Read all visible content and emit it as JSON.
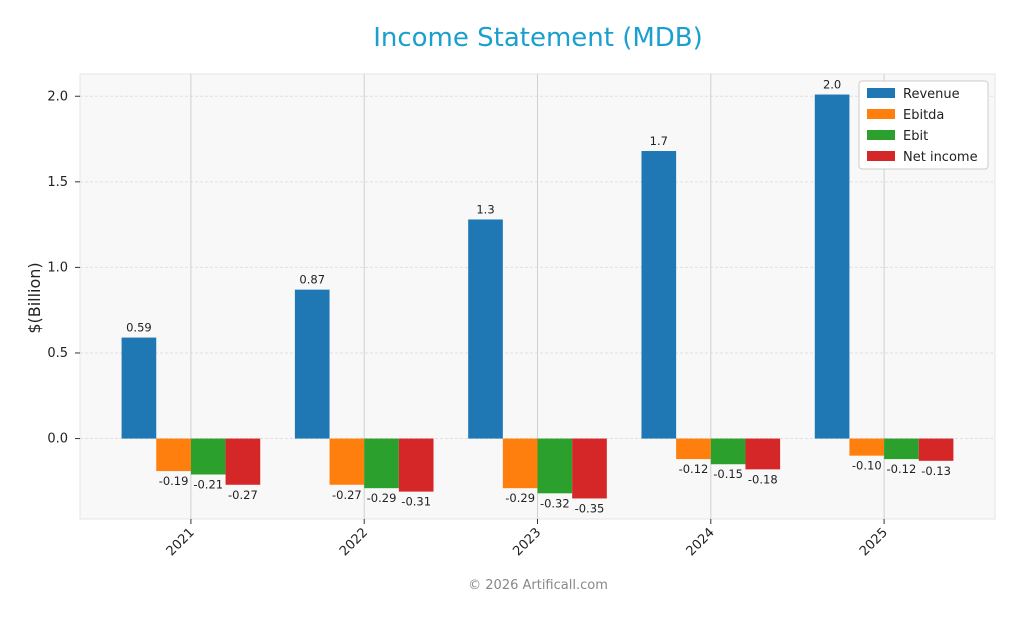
{
  "chart_data": {
    "type": "bar",
    "title": "Income Statement (MDB)",
    "ylabel": "$(Billion)",
    "footer": "© 2026 Artificall.com",
    "categories": [
      "2021",
      "2022",
      "2023",
      "2024",
      "2025"
    ],
    "series": [
      {
        "name": "Revenue",
        "color": "#1f77b4",
        "values": [
          0.59,
          0.87,
          1.28,
          1.68,
          2.01
        ],
        "value_labels": [
          "0.59",
          "0.87",
          "1.3",
          "1.7",
          "2.0"
        ]
      },
      {
        "name": "Ebitda",
        "color": "#ff7f0e",
        "values": [
          -0.19,
          -0.27,
          -0.29,
          -0.12,
          -0.1
        ],
        "value_labels": [
          "-0.19",
          "-0.27",
          "-0.29",
          "-0.12",
          "-0.10"
        ]
      },
      {
        "name": "Ebit",
        "color": "#2ca02c",
        "values": [
          -0.21,
          -0.29,
          -0.32,
          -0.15,
          -0.12
        ],
        "value_labels": [
          "-0.21",
          "-0.29",
          "-0.32",
          "-0.15",
          "-0.12"
        ]
      },
      {
        "name": "Net income",
        "color": "#d62728",
        "values": [
          -0.27,
          -0.31,
          -0.35,
          -0.18,
          -0.13
        ],
        "value_labels": [
          "-0.27",
          "-0.31",
          "-0.35",
          "-0.18",
          "-0.13"
        ]
      }
    ],
    "ylim": [
      -0.47,
      2.13
    ],
    "yticks": [
      {
        "value": 0,
        "label": "0.0"
      },
      0.5,
      {
        "value": 1,
        "label": "1.0"
      },
      1.5,
      {
        "value": 2,
        "label": "2.0"
      }
    ],
    "grid": true,
    "legend": "upper right"
  }
}
